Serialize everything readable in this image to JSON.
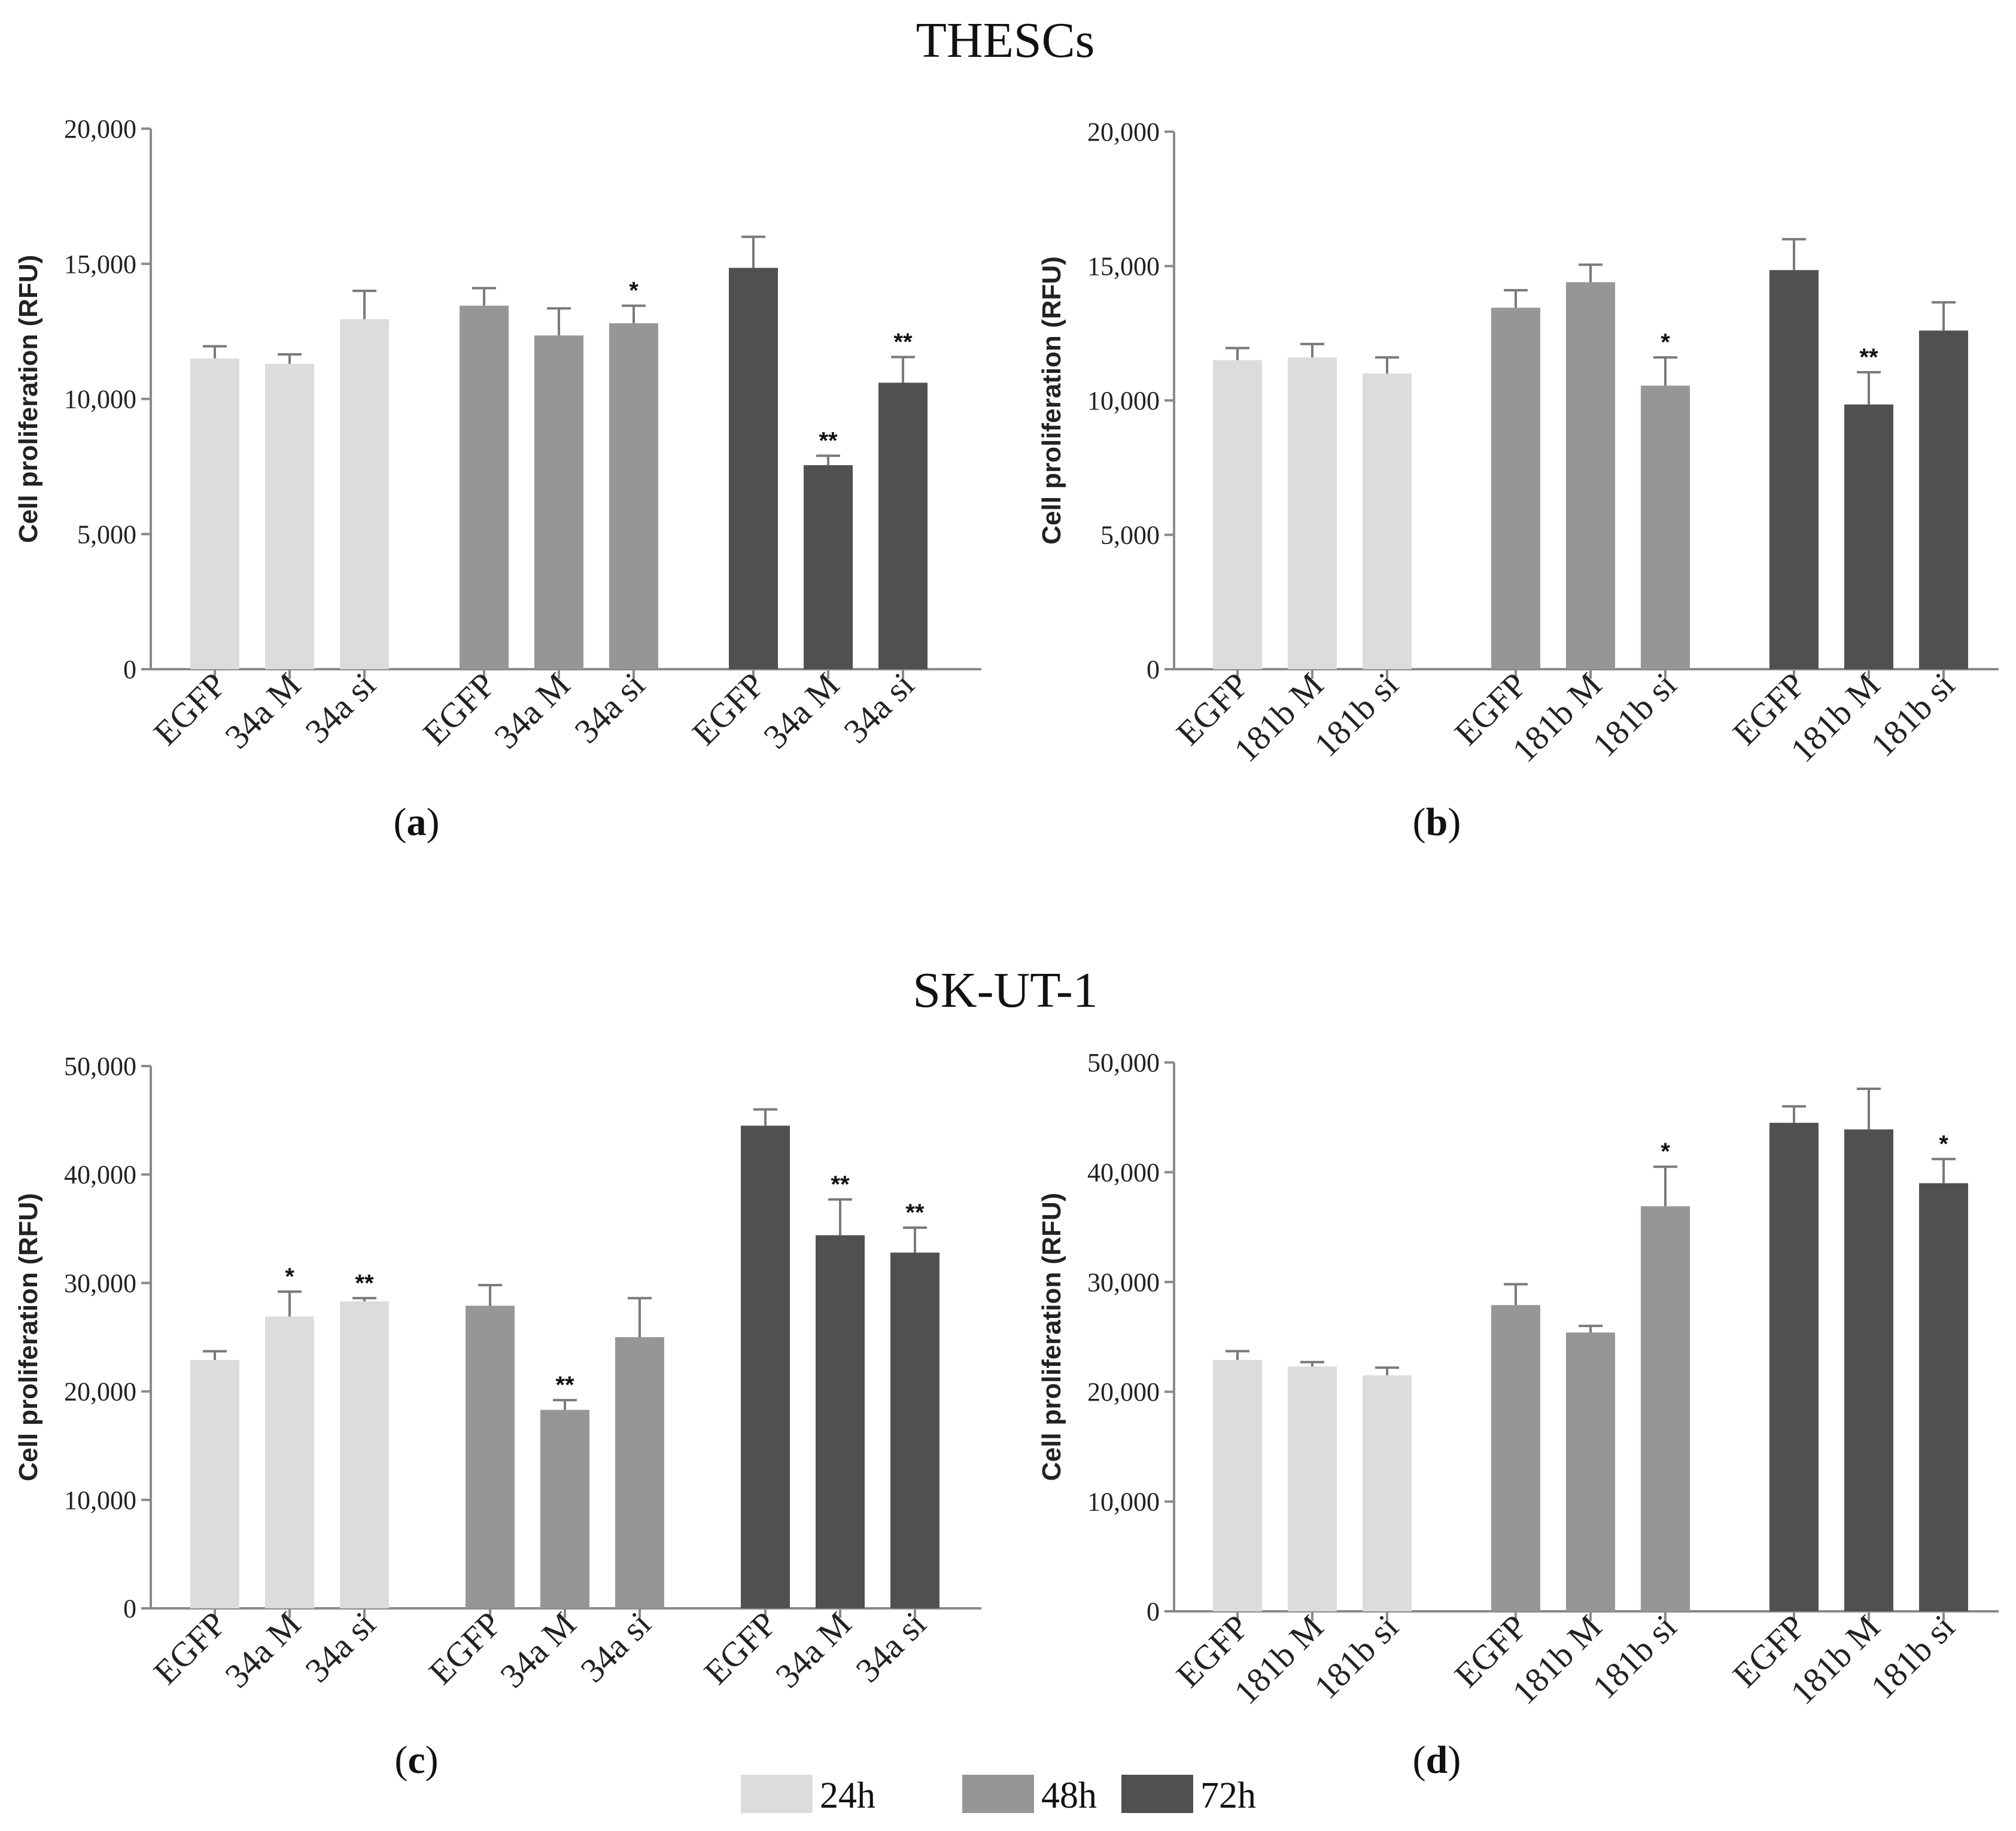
{
  "section_titles": [
    "THESCs",
    "SK-UT-1"
  ],
  "legend": [
    {
      "label": "24h",
      "color": "#dcdcdc"
    },
    {
      "label": "48h",
      "color": "#959795"
    },
    {
      "label": "72h",
      "color": "#505050"
    }
  ],
  "chart_data": [
    {
      "type": "bar",
      "panel_label": "a",
      "section": "THESCs",
      "ylabel": "Cell proliferation (RFU)",
      "ylim": [
        0,
        20000
      ],
      "yticks": [
        0,
        5000,
        10000,
        15000,
        20000
      ],
      "ytick_labels": [
        "0",
        "5,000",
        "10,000",
        "15,000",
        "20,000"
      ],
      "categories": [
        "EGFP",
        "34a M",
        "34a si"
      ],
      "series": [
        {
          "name": "24h",
          "values": [
            11500,
            11300,
            12950
          ],
          "errors": [
            450,
            350,
            1050
          ],
          "significance": [
            "",
            "",
            ""
          ]
        },
        {
          "name": "48h",
          "values": [
            13450,
            12350,
            12800
          ],
          "errors": [
            650,
            1000,
            650
          ],
          "significance": [
            "",
            "",
            "*"
          ]
        },
        {
          "name": "72h",
          "values": [
            14850,
            7550,
            10600
          ],
          "errors": [
            1150,
            350,
            950
          ],
          "significance": [
            "",
            "**",
            "**"
          ]
        }
      ]
    },
    {
      "type": "bar",
      "panel_label": "b",
      "section": "THESCs",
      "ylabel": "Cell proliferation (RFU)",
      "ylim": [
        0,
        20000
      ],
      "yticks": [
        0,
        5000,
        10000,
        15000,
        20000
      ],
      "ytick_labels": [
        "0",
        "5,000",
        "10,000",
        "15,000",
        "20,000"
      ],
      "categories": [
        "EGFP",
        "181b M",
        "181b si"
      ],
      "series": [
        {
          "name": "24h",
          "values": [
            11500,
            11600,
            11000
          ],
          "errors": [
            450,
            500,
            600
          ],
          "significance": [
            "",
            "",
            ""
          ]
        },
        {
          "name": "48h",
          "values": [
            13450,
            14400,
            10550
          ],
          "errors": [
            650,
            650,
            1050
          ],
          "significance": [
            "",
            "",
            "*"
          ]
        },
        {
          "name": "72h",
          "values": [
            14850,
            9850,
            12600
          ],
          "errors": [
            1150,
            1200,
            1050
          ],
          "significance": [
            "",
            "**",
            ""
          ]
        }
      ]
    },
    {
      "type": "bar",
      "panel_label": "c",
      "section": "SK-UT-1",
      "ylabel": "Cell proliferation (RFU)",
      "ylim": [
        0,
        50000
      ],
      "yticks": [
        0,
        10000,
        20000,
        30000,
        40000,
        50000
      ],
      "ytick_labels": [
        "0",
        "10,000",
        "20,000",
        "30,000",
        "40,000",
        "50,000"
      ],
      "categories": [
        "EGFP",
        "34a M",
        "34a si"
      ],
      "series": [
        {
          "name": "24h",
          "values": [
            22900,
            26900,
            28300
          ],
          "errors": [
            800,
            2300,
            300
          ],
          "significance": [
            "",
            "*",
            "**"
          ]
        },
        {
          "name": "48h",
          "values": [
            27900,
            18300,
            25000
          ],
          "errors": [
            1900,
            900,
            3600
          ],
          "significance": [
            "",
            "**",
            ""
          ]
        },
        {
          "name": "72h",
          "values": [
            44500,
            34400,
            32800
          ],
          "errors": [
            1500,
            3300,
            2300
          ],
          "significance": [
            "",
            "**",
            "**"
          ]
        }
      ]
    },
    {
      "type": "bar",
      "panel_label": "d",
      "section": "SK-UT-1",
      "ylabel": "Cell proliferation (RFU)",
      "ylim": [
        0,
        50000
      ],
      "yticks": [
        0,
        10000,
        20000,
        30000,
        40000,
        50000
      ],
      "ytick_labels": [
        "0",
        "10,000",
        "20,000",
        "30,000",
        "40,000",
        "50,000"
      ],
      "categories": [
        "EGFP",
        "181b M",
        "181b si"
      ],
      "series": [
        {
          "name": "24h",
          "values": [
            22900,
            22300,
            21500
          ],
          "errors": [
            800,
            400,
            700
          ],
          "significance": [
            "",
            "",
            ""
          ]
        },
        {
          "name": "48h",
          "values": [
            27900,
            25400,
            36900
          ],
          "errors": [
            1900,
            600,
            3600
          ],
          "significance": [
            "",
            "",
            "*"
          ]
        },
        {
          "name": "72h",
          "values": [
            44500,
            43900,
            39000
          ],
          "errors": [
            1500,
            3700,
            2200
          ],
          "significance": [
            "",
            "",
            "*"
          ]
        }
      ]
    }
  ]
}
